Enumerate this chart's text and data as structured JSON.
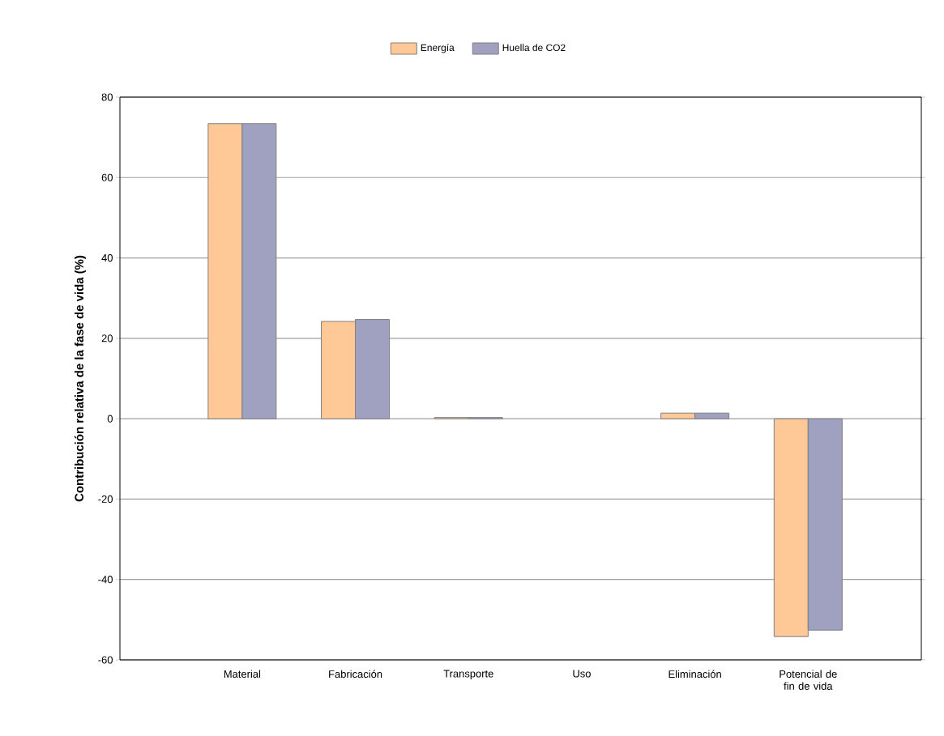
{
  "chart_data": {
    "type": "bar",
    "ylabel": "Contribución relativa de la fase de vida (%)",
    "categories": [
      "Material",
      "Fabricación",
      "Transporte",
      "Uso",
      "Eliminación",
      "Potencial de fin de vida"
    ],
    "series": [
      {
        "name": "Energía",
        "color": "#ffc896",
        "values": [
          73.4,
          24.2,
          0.3,
          0,
          1.4,
          -54.2
        ]
      },
      {
        "name": "Huella de CO2",
        "color": "#a0a0c0",
        "values": [
          73.4,
          24.7,
          0.3,
          0,
          1.4,
          -52.6
        ]
      }
    ],
    "ylim": [
      -60,
      80
    ],
    "yticks": [
      -60,
      -40,
      -20,
      0,
      20,
      40,
      60,
      80
    ],
    "grid": "y",
    "legend": "top"
  }
}
